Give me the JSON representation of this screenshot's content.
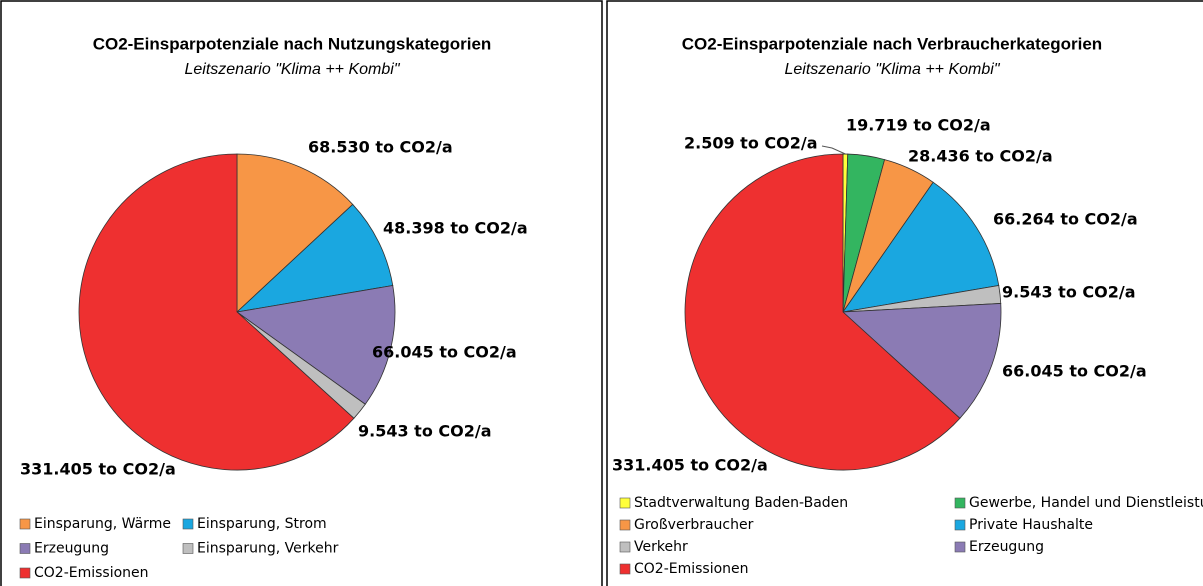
{
  "chart_data": [
    {
      "type": "pie",
      "title": "CO2-Einsparpotenziale nach Nutzungskategorien",
      "subtitle": "Leitszenario \"Klima ++ Kombi\"",
      "categories": [
        "Einsparung, Wärme",
        "Einsparung, Strom",
        "Erzeugung",
        "Einsparung, Verkehr",
        "CO2-Emissionen"
      ],
      "values": [
        68530,
        48398,
        66045,
        9543,
        331405
      ],
      "value_labels": [
        "68.530 to CO2/a",
        "48.398 to CO2/a",
        "66.045 to CO2/a",
        "9.543 to CO2/a",
        "331.405 to CO2/a"
      ],
      "colors": [
        "#f79646",
        "#1aa7e0",
        "#8b7bb4",
        "#bfbfbf",
        "#ee3030"
      ]
    },
    {
      "type": "pie",
      "title": "CO2-Einsparpotenziale nach Verbraucherkategorien",
      "subtitle": "Leitszenario \"Klima ++ Kombi\"",
      "categories": [
        "Stadtverwaltung Baden-Baden",
        "Gewerbe, Handel und Dienstleistungen",
        "Großverbraucher",
        "Private Haushalte",
        "Verkehr",
        "Erzeugung",
        "CO2-Emissionen"
      ],
      "values": [
        2509,
        19719,
        28436,
        66264,
        9543,
        66045,
        331405
      ],
      "value_labels": [
        "2.509 to CO2/a",
        "19.719 to CO2/a",
        "28.436 to CO2/a",
        "66.264 to CO2/a",
        "9.543 to CO2/a",
        "66.045 to CO2/a",
        "331.405 to CO2/a"
      ],
      "colors": [
        "#ffff3a",
        "#33b560",
        "#f79646",
        "#1aa7e0",
        "#bfbfbf",
        "#8b7bb4",
        "#ee3030"
      ]
    }
  ]
}
